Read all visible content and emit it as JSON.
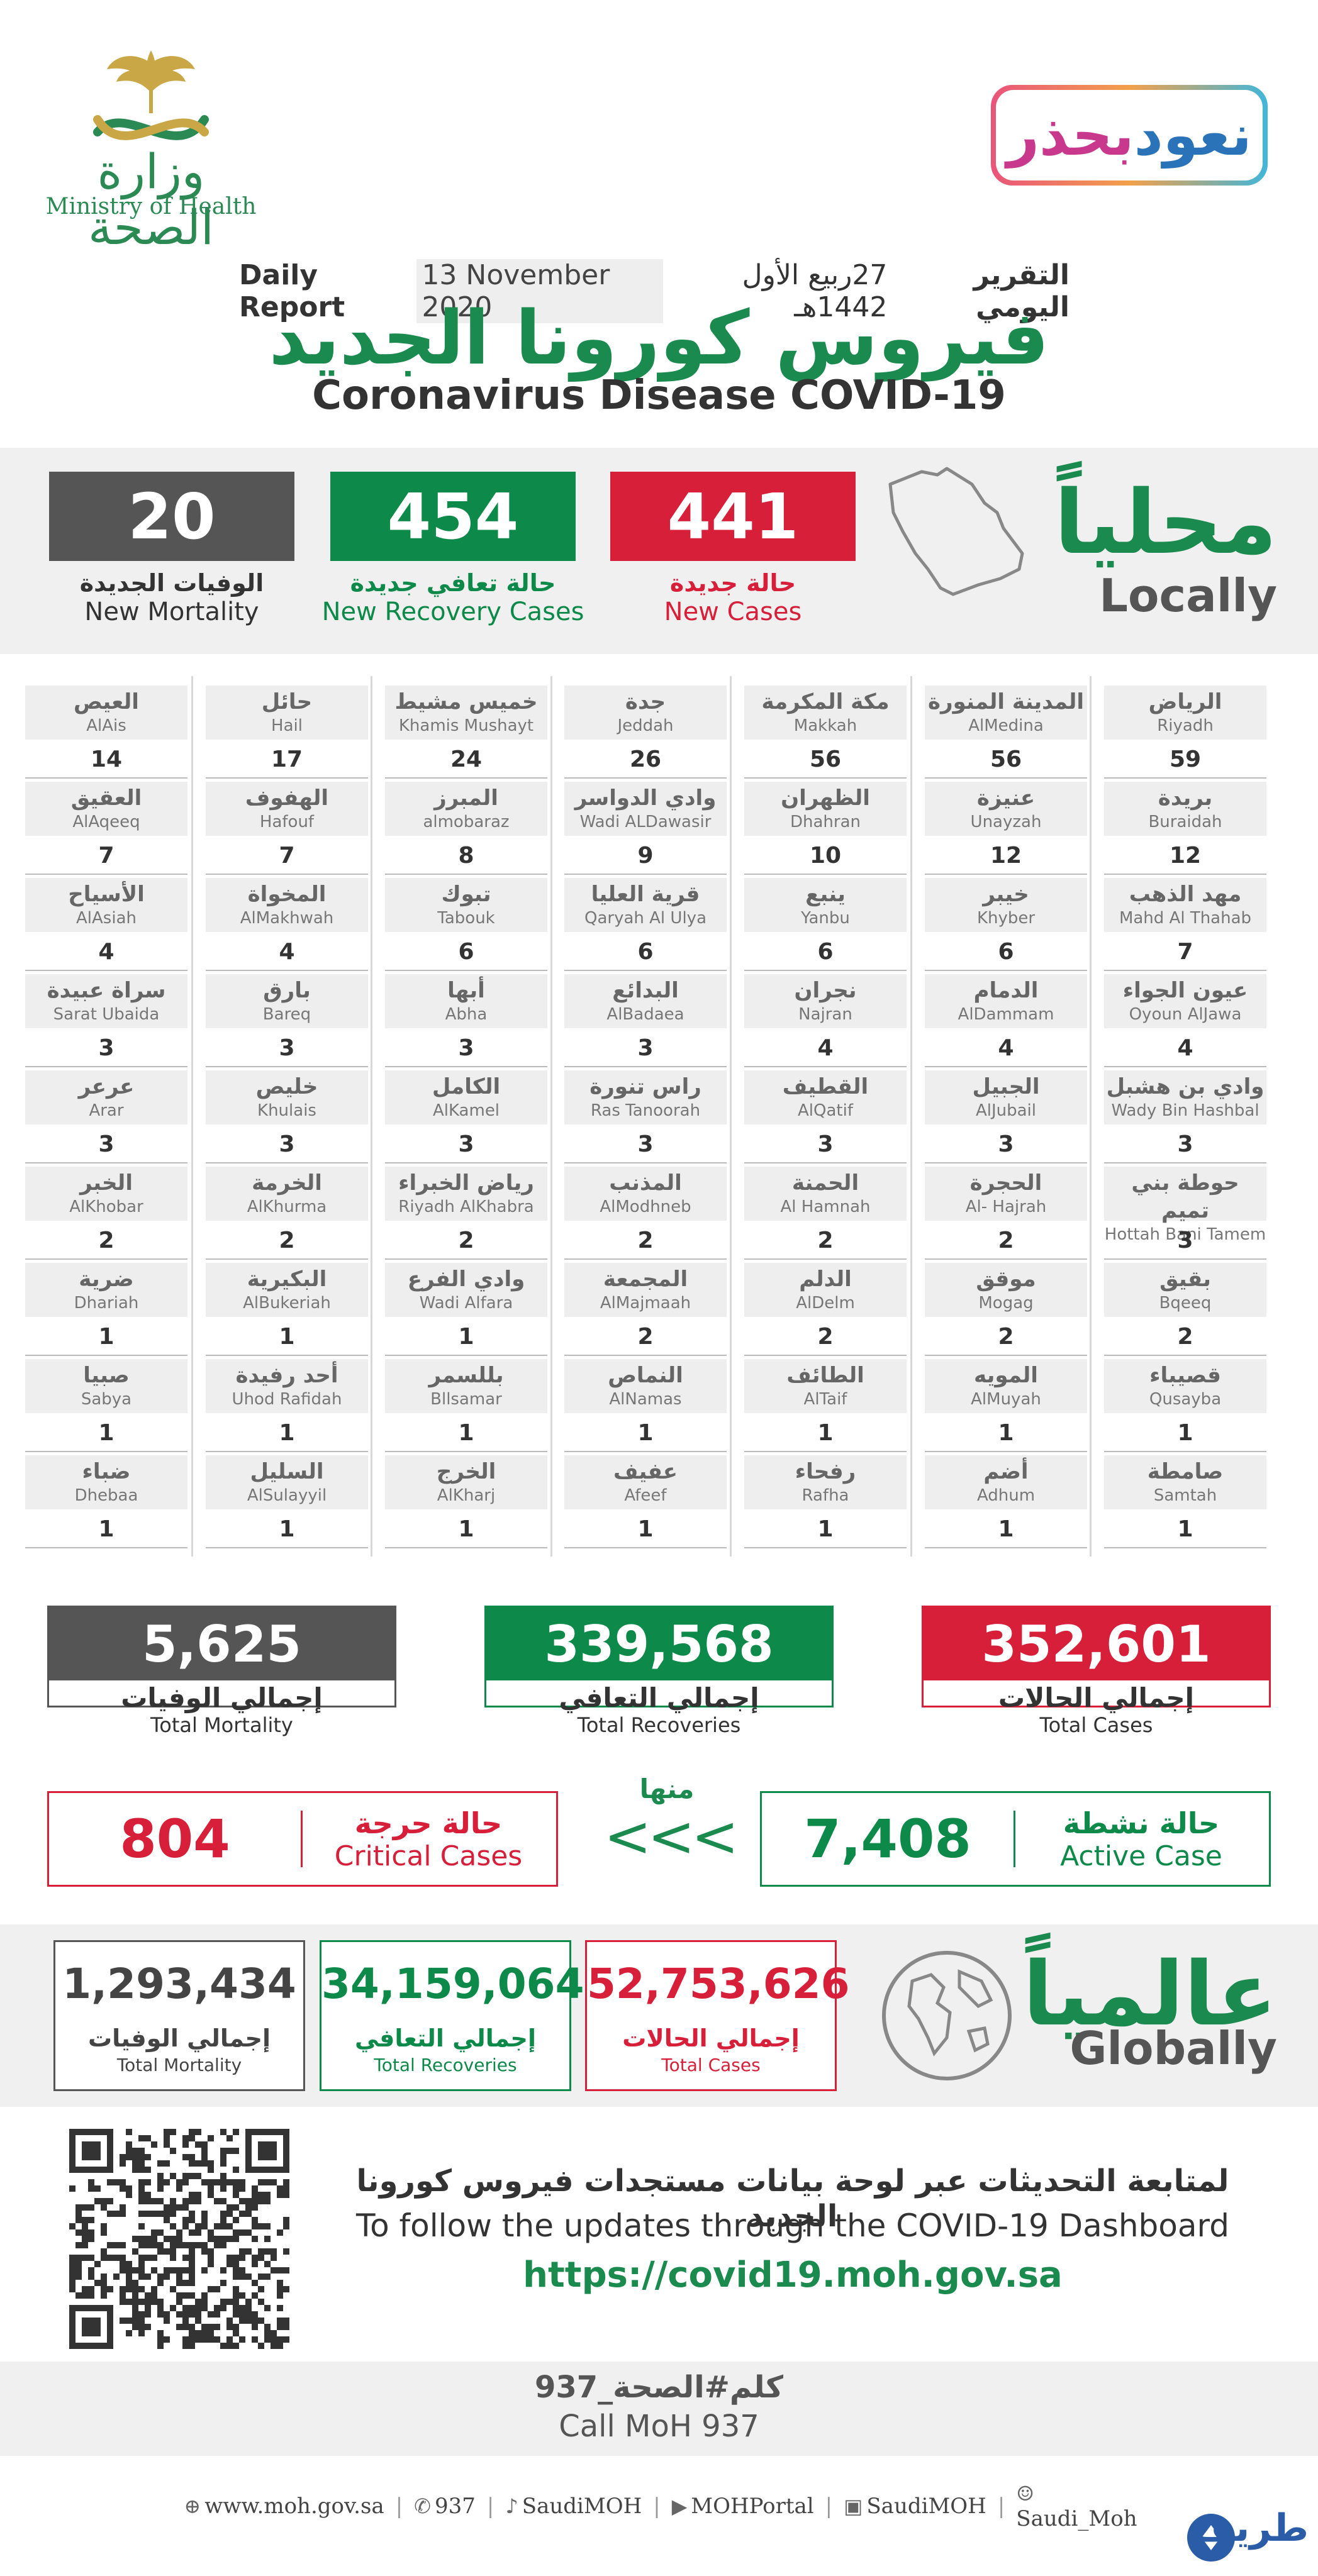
{
  "header": {
    "logo_ar": "وزارة الصحة",
    "logo_en": "Ministry of Health",
    "campaign_a": "نعود",
    "campaign_b": "بحذر",
    "report_ar": "التقرير اليومي",
    "report_hijri": "27ربيع الأول 1442هـ",
    "report_date": "13 November 2020",
    "report_en": "Daily Report",
    "title_ar": "فيروس كورونا الجديد",
    "title_en": "Coronavirus Disease COVID-19"
  },
  "locally": {
    "label_ar": "محلياً",
    "label_en": "Locally",
    "new_cases": {
      "value": "441",
      "ar": "حالة جديدة",
      "en": "New Cases"
    },
    "new_recovery": {
      "value": "454",
      "ar": "حالة تعافي جديدة",
      "en": "New Recovery Cases"
    },
    "new_mortality": {
      "value": "20",
      "ar": "الوفيات الجديدة",
      "en": "New Mortality"
    }
  },
  "cities": [
    [
      {
        "ar": "الرياض",
        "en": "Riyadh",
        "n": "59"
      },
      {
        "ar": "بريدة",
        "en": "Buraidah",
        "n": "12"
      },
      {
        "ar": "مهد الذهب",
        "en": "Mahd Al Thahab",
        "n": "7"
      },
      {
        "ar": "عيون الجواء",
        "en": "Oyoun AlJawa",
        "n": "4"
      },
      {
        "ar": "وادي بن هشبل",
        "en": "Wady Bin Hashbal",
        "n": "3"
      },
      {
        "ar": "حوطة بني تميم",
        "en": "Hottah Bani Tamem",
        "n": "3"
      },
      {
        "ar": "بقيق",
        "en": "Bqeeq",
        "n": "2"
      },
      {
        "ar": "قصيباء",
        "en": "Qusayba",
        "n": "1"
      },
      {
        "ar": "صامطة",
        "en": "Samtah",
        "n": "1"
      }
    ],
    [
      {
        "ar": "المدينة المنورة",
        "en": "AlMedina",
        "n": "56"
      },
      {
        "ar": "عنيزة",
        "en": "Unayzah",
        "n": "12"
      },
      {
        "ar": "خيبر",
        "en": "Khyber",
        "n": "6"
      },
      {
        "ar": "الدمام",
        "en": "AlDammam",
        "n": "4"
      },
      {
        "ar": "الجبيل",
        "en": "AlJubail",
        "n": "3"
      },
      {
        "ar": "الحجرة",
        "en": "Al- Hajrah",
        "n": "2"
      },
      {
        "ar": "موقق",
        "en": "Mogag",
        "n": "2"
      },
      {
        "ar": "المويه",
        "en": "AlMuyah",
        "n": "1"
      },
      {
        "ar": "أضم",
        "en": "Adhum",
        "n": "1"
      }
    ],
    [
      {
        "ar": "مكة المكرمة",
        "en": "Makkah",
        "n": "56"
      },
      {
        "ar": "الظهران",
        "en": "Dhahran",
        "n": "10"
      },
      {
        "ar": "ينبع",
        "en": "Yanbu",
        "n": "6"
      },
      {
        "ar": "نجران",
        "en": "Najran",
        "n": "4"
      },
      {
        "ar": "القطيف",
        "en": "AlQatif",
        "n": "3"
      },
      {
        "ar": "الحمنة",
        "en": "Al Hamnah",
        "n": "2"
      },
      {
        "ar": "الدلم",
        "en": "AlDelm",
        "n": "2"
      },
      {
        "ar": "الطائف",
        "en": "AlTaif",
        "n": "1"
      },
      {
        "ar": "رفحاء",
        "en": "Rafha",
        "n": "1"
      }
    ],
    [
      {
        "ar": "جدة",
        "en": "Jeddah",
        "n": "26"
      },
      {
        "ar": "وادي الدواسر",
        "en": "Wadi ALDawasir",
        "n": "9"
      },
      {
        "ar": "قرية العليا",
        "en": "Qaryah Al Ulya",
        "n": "6"
      },
      {
        "ar": "البدائع",
        "en": "AlBadaea",
        "n": "3"
      },
      {
        "ar": "راس تنورة",
        "en": "Ras Tanoorah",
        "n": "3"
      },
      {
        "ar": "المذنب",
        "en": "AlModhneb",
        "n": "2"
      },
      {
        "ar": "المجمعة",
        "en": "AlMajmaah",
        "n": "2"
      },
      {
        "ar": "النماص",
        "en": "AlNamas",
        "n": "1"
      },
      {
        "ar": "عفيف",
        "en": "Afeef",
        "n": "1"
      }
    ],
    [
      {
        "ar": "خميس مشيط",
        "en": "Khamis Mushayt",
        "n": "24"
      },
      {
        "ar": "المبرز",
        "en": "almobaraz",
        "n": "8"
      },
      {
        "ar": "تبوك",
        "en": "Tabouk",
        "n": "6"
      },
      {
        "ar": "أبها",
        "en": "Abha",
        "n": "3"
      },
      {
        "ar": "الكامل",
        "en": "AlKamel",
        "n": "3"
      },
      {
        "ar": "رياض الخبراء",
        "en": "Riyadh AlKhabra",
        "n": "2"
      },
      {
        "ar": "وادي الفرع",
        "en": "Wadi Alfara",
        "n": "1"
      },
      {
        "ar": "بللسمر",
        "en": "Bllsamar",
        "n": "1"
      },
      {
        "ar": "الخرج",
        "en": "AlKharj",
        "n": "1"
      }
    ],
    [
      {
        "ar": "حائل",
        "en": "Hail",
        "n": "17"
      },
      {
        "ar": "الهفوف",
        "en": "Hafouf",
        "n": "7"
      },
      {
        "ar": "المخواة",
        "en": "AlMakhwah",
        "n": "4"
      },
      {
        "ar": "بارق",
        "en": "Bareq",
        "n": "3"
      },
      {
        "ar": "خليص",
        "en": "Khulais",
        "n": "3"
      },
      {
        "ar": "الخرمة",
        "en": "AlKhurma",
        "n": "2"
      },
      {
        "ar": "البكيرية",
        "en": "AlBukeriah",
        "n": "1"
      },
      {
        "ar": "أحد رفيدة",
        "en": "Uhod Rafidah",
        "n": "1"
      },
      {
        "ar": "السليل",
        "en": "AlSulayyil",
        "n": "1"
      }
    ],
    [
      {
        "ar": "العيص",
        "en": "AlAis",
        "n": "14"
      },
      {
        "ar": "العقيق",
        "en": "AlAqeeq",
        "n": "7"
      },
      {
        "ar": "الأسياح",
        "en": "AlAsiah",
        "n": "4"
      },
      {
        "ar": "سراة عبيدة",
        "en": "Sarat Ubaida",
        "n": "3"
      },
      {
        "ar": "عرعر",
        "en": "Arar",
        "n": "3"
      },
      {
        "ar": "الخبر",
        "en": "AlKhobar",
        "n": "2"
      },
      {
        "ar": "ضرية",
        "en": "Dhariah",
        "n": "1"
      },
      {
        "ar": "صبيا",
        "en": "Sabya",
        "n": "1"
      },
      {
        "ar": "ضباء",
        "en": "Dhebaa",
        "n": "1"
      }
    ]
  ],
  "totals": {
    "cases": {
      "value": "352,601",
      "ar": "إجمالي الحالات",
      "en": "Total Cases"
    },
    "recoveries": {
      "value": "339,568",
      "ar": "إجمالي التعافي",
      "en": "Total Recoveries"
    },
    "mortality": {
      "value": "5,625",
      "ar": "إجمالي الوفيات",
      "en": "Total Mortality"
    }
  },
  "active": {
    "value": "7,408",
    "ar": "حالة نشطة",
    "en": "Active Case"
  },
  "of_which": "منها",
  "chevrons": "<<<",
  "critical": {
    "value": "804",
    "ar": "حالة حرجة",
    "en": "Critical Cases"
  },
  "globally": {
    "label_ar": "عالمياً",
    "label_en": "Globally",
    "cases": {
      "value": "52,753,626",
      "ar": "إجمالي الحالات",
      "en": "Total Cases"
    },
    "recoveries": {
      "value": "34,159,064",
      "ar": "إجمالي التعافي",
      "en": "Total Recoveries"
    },
    "mortality": {
      "value": "1,293,434",
      "ar": "إجمالي الوفيات",
      "en": "Total Mortality"
    }
  },
  "dashboard": {
    "ar": "لمتابعة التحديثات عبر لوحة بيانات مستجدات فيروس كورونا الجديد",
    "en": "To follow the updates through the COVID-19 Dashboard",
    "url": "https://covid19.moh.gov.sa"
  },
  "call": {
    "ar": "كلم#الصحة_937",
    "en": "Call MoH 937"
  },
  "footer": {
    "web": "www.moh.gov.sa",
    "phone": "937",
    "twitter": "SaudiMOH",
    "youtube": "MOHPortal",
    "facebook": "SaudiMOH",
    "snapchat": "Saudi_Moh"
  },
  "watermark": "طريف",
  "colors": {
    "red": "#d71f3a",
    "green": "#0d8a4a",
    "gray": "#555555"
  }
}
